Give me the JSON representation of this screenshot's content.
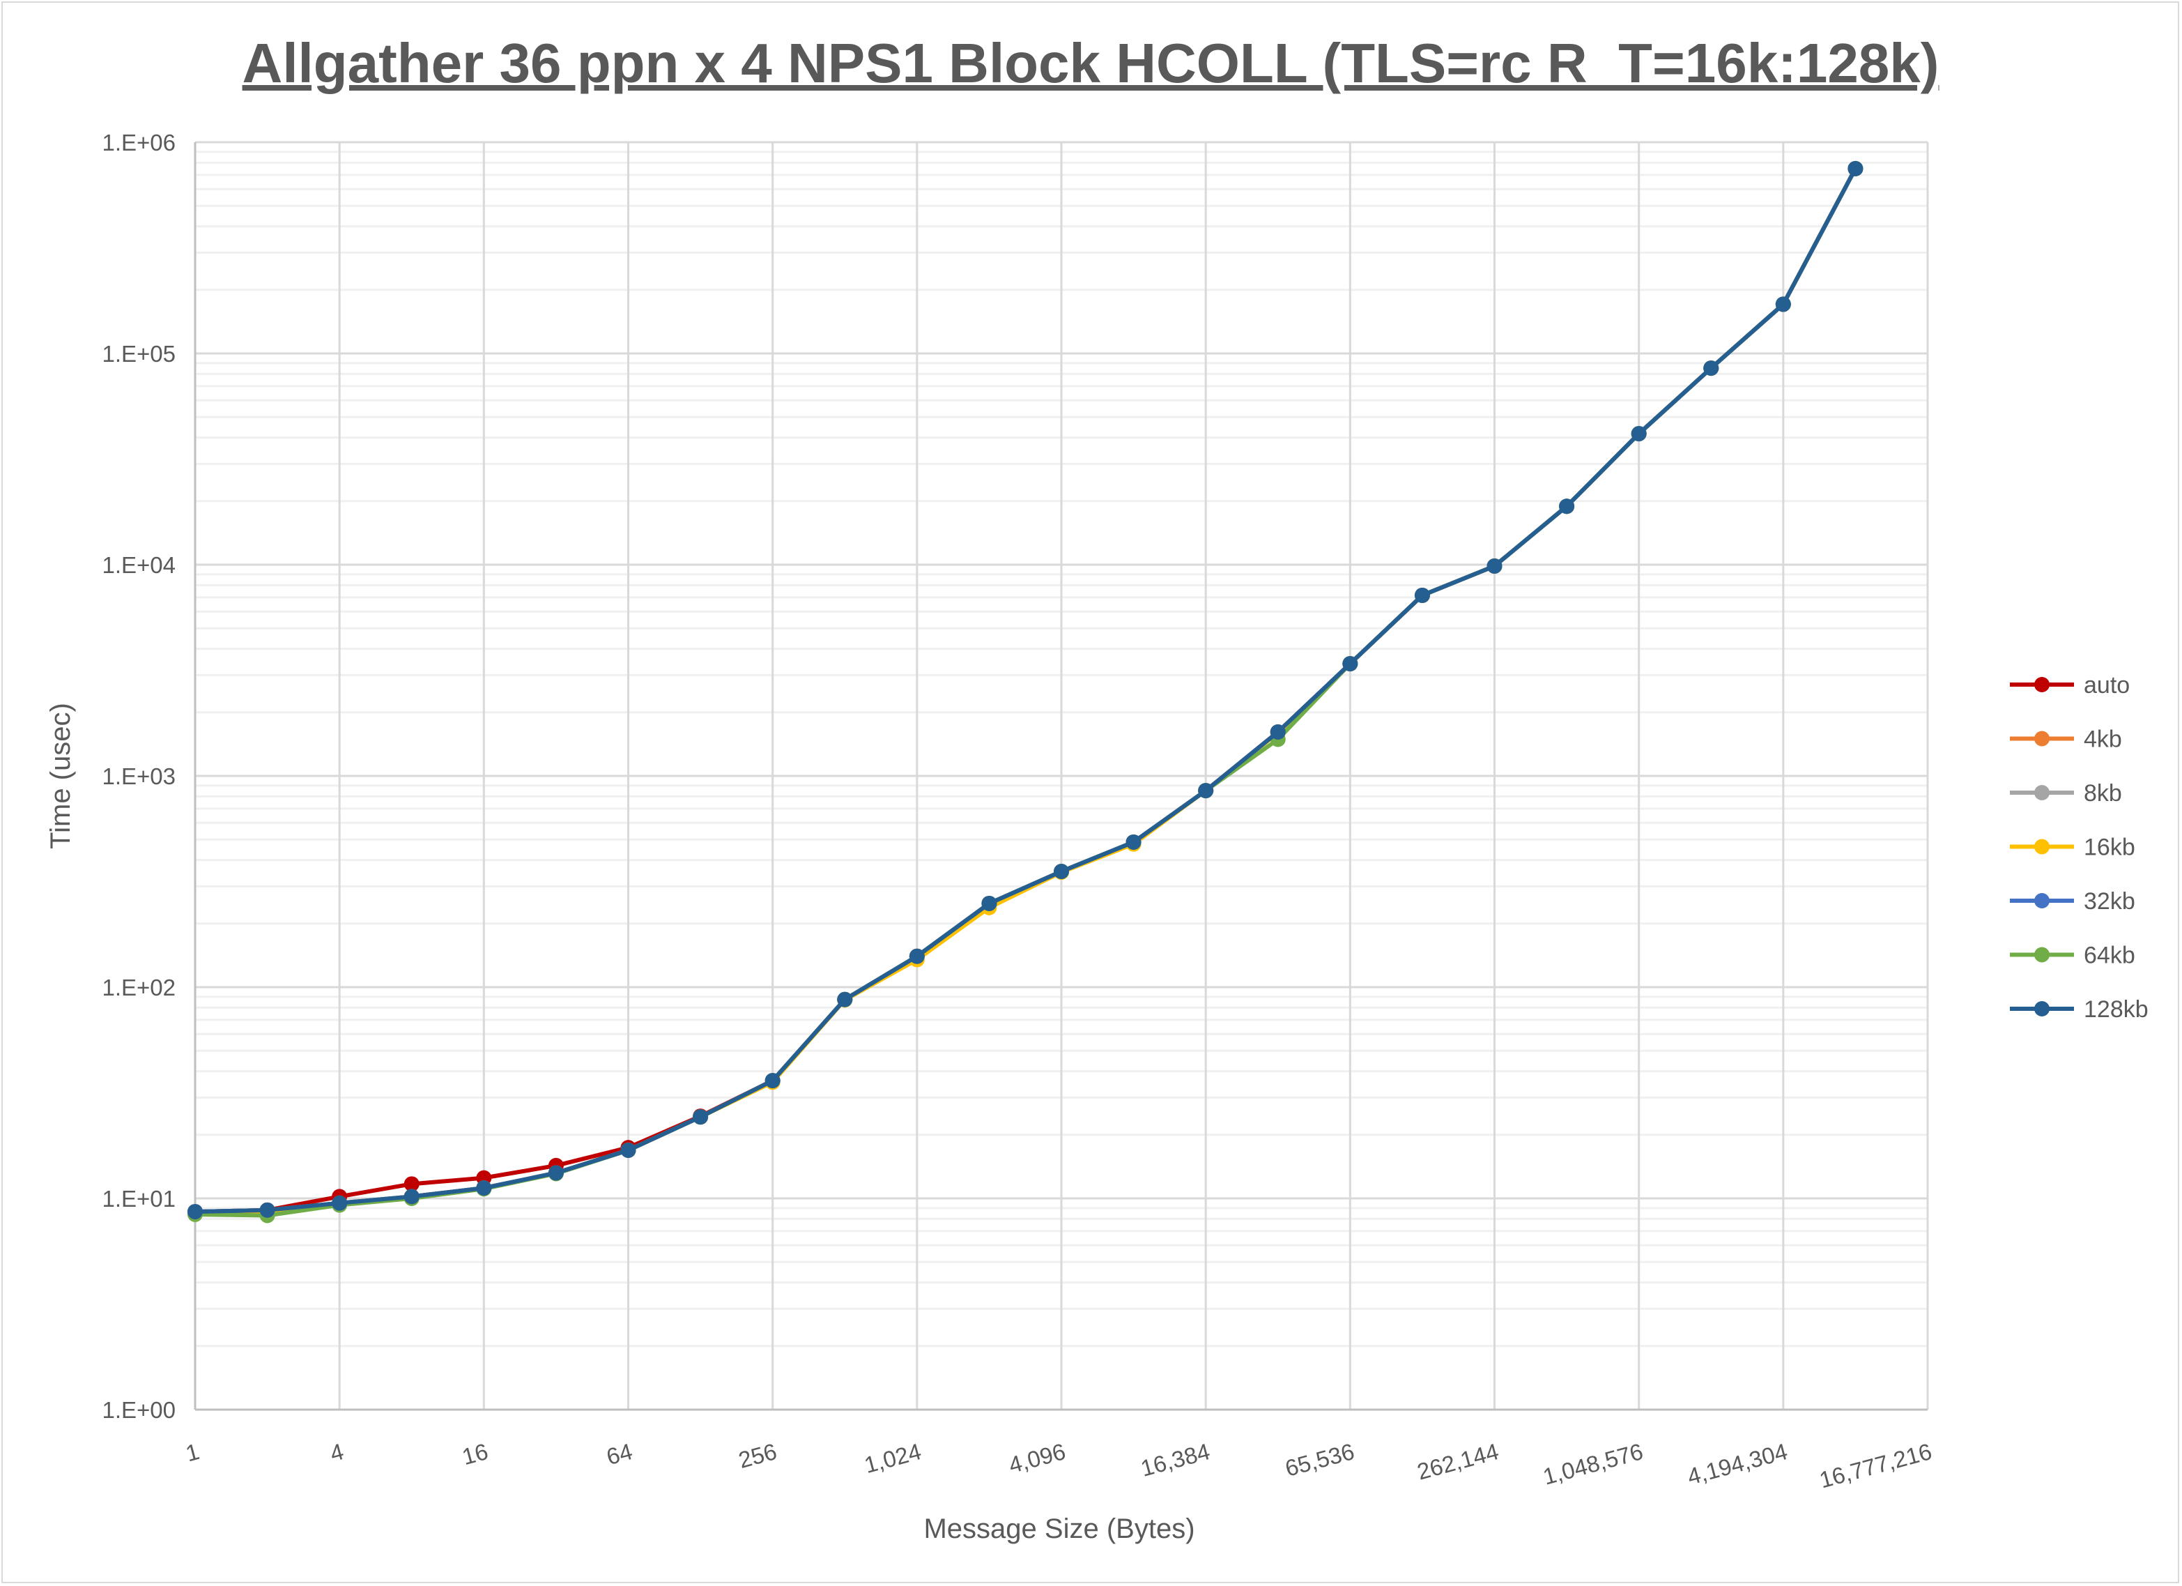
{
  "chart_data": {
    "type": "line",
    "title": "Allgather 36 ppn x 4 NPS1 Block HCOLL (TLS=rc R_T=16k:128k)",
    "xlabel": "Message Size (Bytes)",
    "ylabel": "Time (usec)",
    "xscale": "log2",
    "yscale": "log10",
    "xlim": [
      1,
      16777216
    ],
    "ylim": [
      1,
      1000000
    ],
    "x_tick_labels": [
      "1",
      "4",
      "16",
      "64",
      "256",
      "1,024",
      "4,096",
      "16,384",
      "65,536",
      "262,144",
      "1,048,576",
      "4,194,304",
      "16,777,216"
    ],
    "y_tick_labels": [
      "1.E+00",
      "1.E+01",
      "1.E+02",
      "1.E+03",
      "1.E+04",
      "1.E+05",
      "1.E+06"
    ],
    "grid": true,
    "legend_position": "right",
    "x": [
      1,
      2,
      4,
      8,
      16,
      32,
      64,
      128,
      256,
      512,
      1024,
      2048,
      4096,
      8192,
      16384,
      32768,
      65536,
      131072,
      262144,
      524288,
      1048576,
      2097152,
      4194304,
      8388608
    ],
    "series": [
      {
        "name": "auto",
        "color": "#C00000",
        "values": [
          8.65,
          8.8,
          10.2,
          11.7,
          12.5,
          14.3,
          17.4,
          24.5,
          36.1,
          87.4,
          140,
          249,
          353,
          486,
          852,
          1614,
          3397,
          7160,
          9850,
          18900,
          41700,
          85200,
          171000,
          750000
        ]
      },
      {
        "name": "4kb",
        "color": "#ED7D31",
        "values": [
          8.65,
          8.8,
          9.5,
          10.2,
          11.2,
          13.2,
          16.9,
          24.3,
          36.1,
          87.4,
          140,
          249,
          353,
          486,
          852,
          1614,
          3397,
          7160,
          9850,
          18900,
          41700,
          85200,
          171000,
          750000
        ]
      },
      {
        "name": "8kb",
        "color": "#A5A5A5",
        "values": [
          8.65,
          8.8,
          9.5,
          10.2,
          11.2,
          13.2,
          16.9,
          24.3,
          36.1,
          87.4,
          140,
          249,
          353,
          486,
          852,
          1614,
          3397,
          7160,
          9850,
          18900,
          41700,
          85200,
          171000,
          750000
        ]
      },
      {
        "name": "16kb",
        "color": "#FFC000",
        "values": [
          8.6,
          8.7,
          9.5,
          10.2,
          11.2,
          13.2,
          16.9,
          24.3,
          35.5,
          87.0,
          135,
          238,
          350,
          476,
          852,
          1600,
          3397,
          7160,
          9850,
          18900,
          41700,
          85200,
          171000,
          750000
        ]
      },
      {
        "name": "32kb",
        "color": "#4472C4",
        "values": [
          8.65,
          8.8,
          9.5,
          10.2,
          11.2,
          13.2,
          16.9,
          24.3,
          36.1,
          87.4,
          140,
          249,
          353,
          486,
          852,
          1614,
          3397,
          7160,
          9850,
          18900,
          41700,
          85200,
          171000,
          750000
        ]
      },
      {
        "name": "64kb",
        "color": "#70AD47",
        "values": [
          8.4,
          8.3,
          9.3,
          10.0,
          11.1,
          13.1,
          16.9,
          24.3,
          36.1,
          87.4,
          140,
          249,
          353,
          486,
          852,
          1490,
          3397,
          7160,
          9850,
          18900,
          41700,
          85200,
          171000,
          750000
        ]
      },
      {
        "name": "128kb",
        "color": "#255E91",
        "values": [
          8.65,
          8.8,
          9.5,
          10.2,
          11.2,
          13.2,
          16.9,
          24.3,
          36.1,
          87.4,
          140,
          249,
          353,
          486,
          852,
          1614,
          3397,
          7160,
          9850,
          18900,
          41700,
          85200,
          171000,
          750000
        ]
      }
    ]
  }
}
